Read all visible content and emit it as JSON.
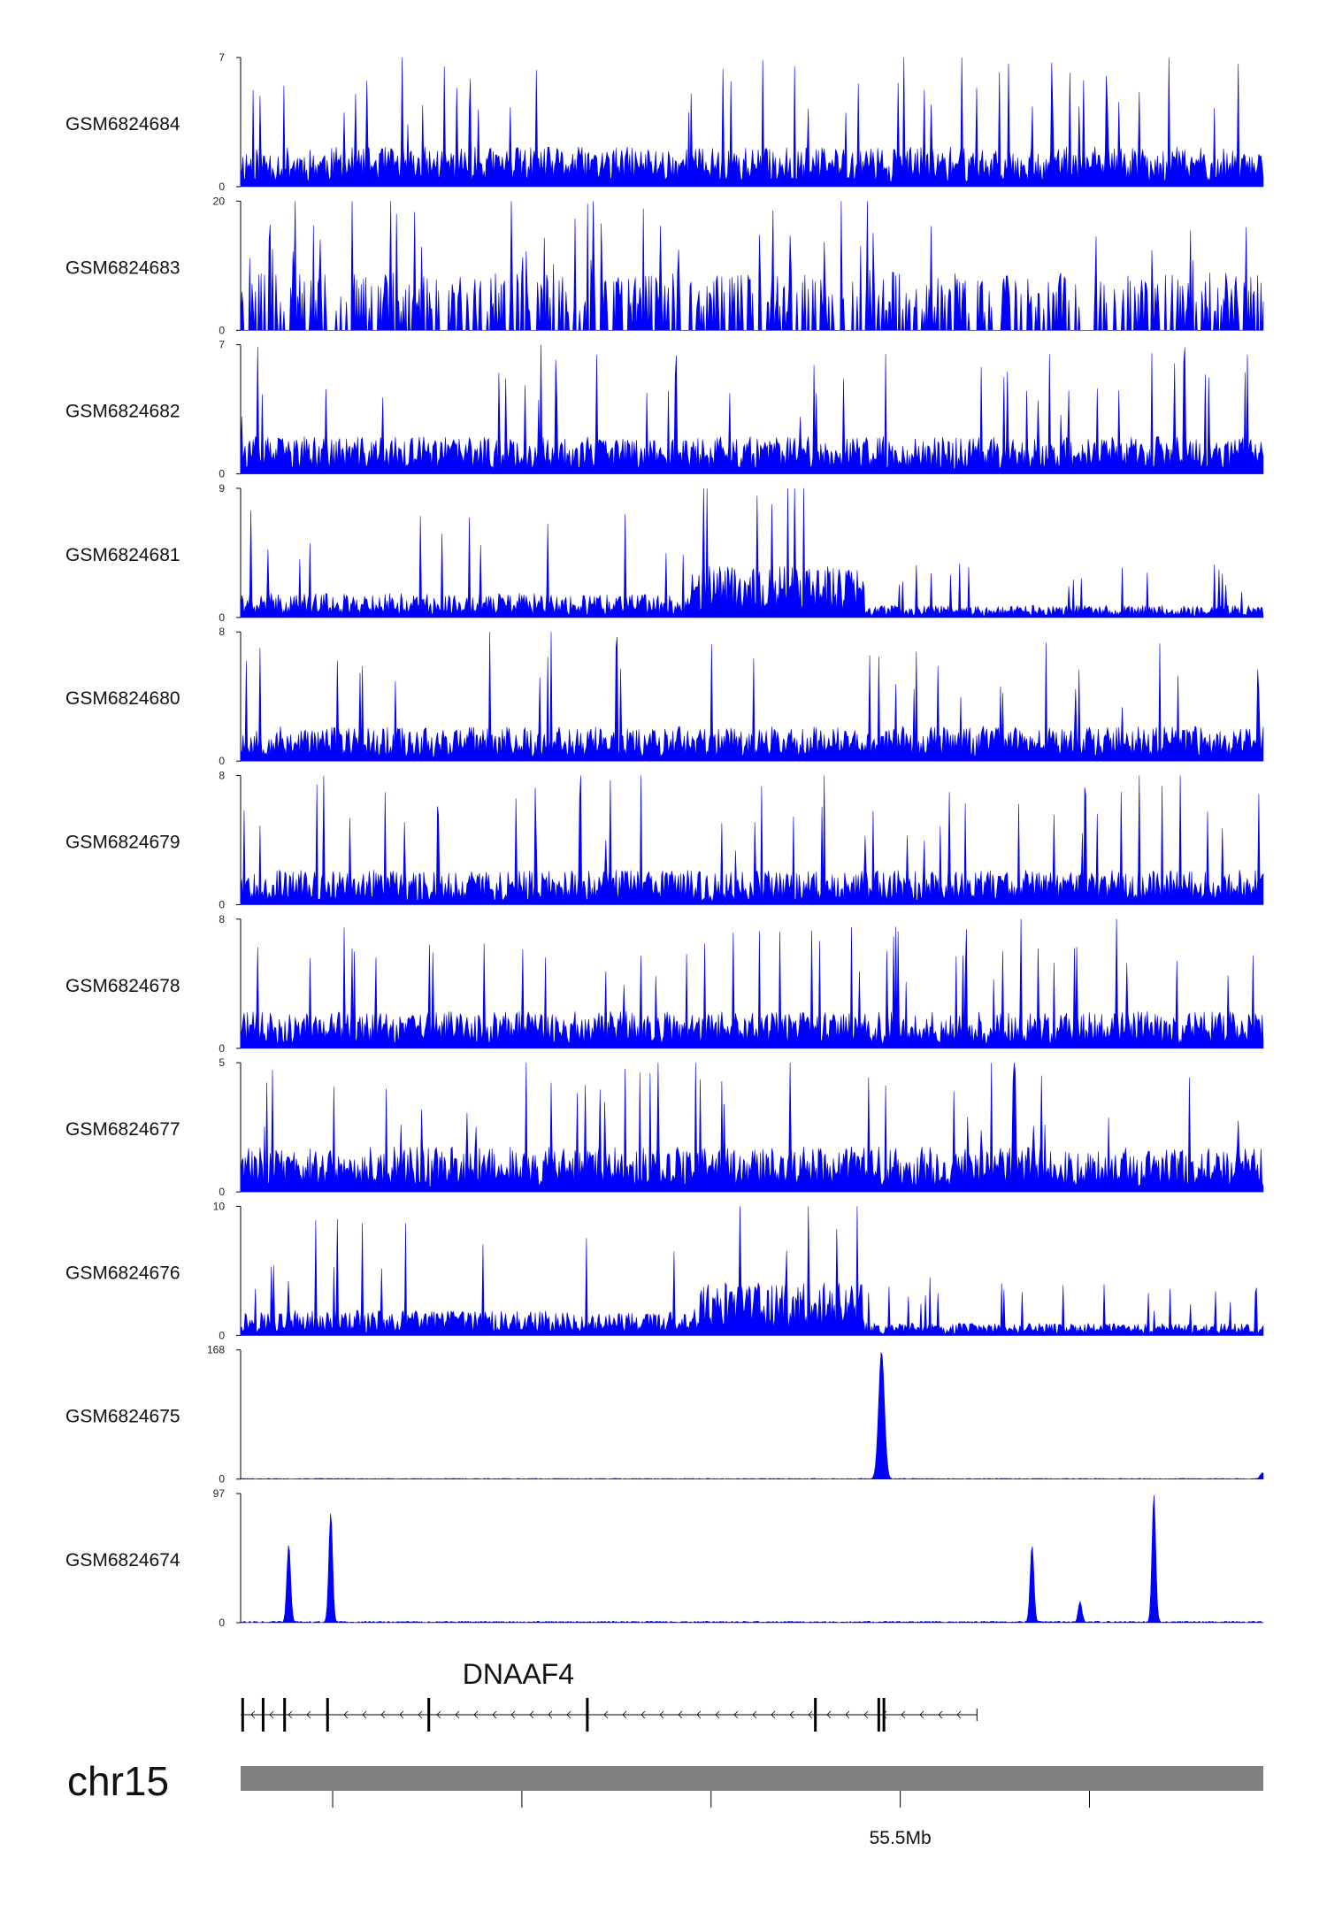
{
  "chart_data": {
    "type": "area",
    "style": {
      "fill_color": "#0000ff",
      "ideogram_color": "#808080"
    },
    "tracks": [
      {
        "name": "GSM6824684",
        "ymax": 7,
        "ymin": 0,
        "profile": "noise",
        "seed": 11,
        "base": 1.6,
        "peaks": []
      },
      {
        "name": "GSM6824683",
        "ymax": 20,
        "ymin": 0,
        "profile": "sparse",
        "seed": 23,
        "base": 4.5,
        "peaks": []
      },
      {
        "name": "GSM6824682",
        "ymax": 7,
        "ymin": 0,
        "profile": "noise",
        "seed": 37,
        "base": 1.5,
        "peaks": []
      },
      {
        "name": "GSM6824681",
        "ymax": 9,
        "ymin": 0,
        "profile": "domain",
        "seed": 41,
        "base": 1.4,
        "peaks": []
      },
      {
        "name": "GSM6824680",
        "ymax": 8,
        "ymin": 0,
        "profile": "noise",
        "seed": 53,
        "base": 1.6,
        "peaks": []
      },
      {
        "name": "GSM6824679",
        "ymax": 8,
        "ymin": 0,
        "profile": "noise",
        "seed": 67,
        "base": 1.6,
        "peaks": []
      },
      {
        "name": "GSM6824678",
        "ymax": 8,
        "ymin": 0,
        "profile": "noise",
        "seed": 71,
        "base": 1.7,
        "peaks": []
      },
      {
        "name": "GSM6824677",
        "ymax": 5,
        "ymin": 0,
        "profile": "noise",
        "seed": 83,
        "base": 1.3,
        "peaks": []
      },
      {
        "name": "GSM6824676",
        "ymax": 10,
        "ymin": 0,
        "profile": "domain",
        "seed": 97,
        "base": 1.6,
        "peaks": []
      },
      {
        "name": "GSM6824675",
        "ymax": 168,
        "ymin": 0,
        "profile": "peaks",
        "seed": 101,
        "base": 1.0,
        "peaks": [
          {
            "pos": 0.626,
            "height": 166,
            "width": 0.0028
          },
          {
            "pos": 0.998,
            "height": 8,
            "width": 0.002
          }
        ]
      },
      {
        "name": "GSM6824674",
        "ymax": 97,
        "ymin": 0,
        "profile": "peaks",
        "seed": 113,
        "base": 1.2,
        "peaks": [
          {
            "pos": 0.047,
            "height": 58,
            "width": 0.0018
          },
          {
            "pos": 0.088,
            "height": 82,
            "width": 0.0018
          },
          {
            "pos": 0.773,
            "height": 58,
            "width": 0.0018
          },
          {
            "pos": 0.82,
            "height": 15,
            "width": 0.0018
          },
          {
            "pos": 0.892,
            "height": 96,
            "width": 0.0018
          }
        ]
      }
    ],
    "gene": {
      "name": "DNAAF4",
      "strand": "-",
      "start": 0.0,
      "end": 0.72,
      "exons": [
        0.002,
        0.022,
        0.043,
        0.085,
        0.184,
        0.339,
        0.562,
        0.624,
        0.629
      ]
    },
    "chromosome": "chr15",
    "x_axis": {
      "ticks": [
        0.09,
        0.275,
        0.46,
        0.645,
        0.83
      ],
      "labels": [
        "",
        "",
        "",
        "55.5Mb",
        ""
      ]
    }
  }
}
